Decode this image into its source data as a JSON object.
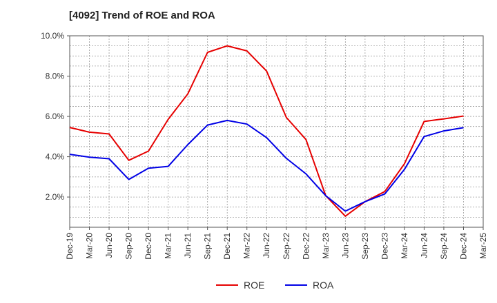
{
  "chart_data": {
    "type": "line",
    "title": "[4092]  Trend of ROE and ROA",
    "x": [
      "Dec-19",
      "Mar-20",
      "Jun-20",
      "Sep-20",
      "Dec-20",
      "Mar-21",
      "Jun-21",
      "Sep-21",
      "Dec-21",
      "Mar-22",
      "Jun-22",
      "Sep-22",
      "Dec-22",
      "Mar-23",
      "Jun-23",
      "Sep-23",
      "Dec-23",
      "Mar-24",
      "Jun-24",
      "Sep-24",
      "Dec-24",
      "Mar-25"
    ],
    "series": [
      {
        "name": "ROE",
        "color": "#e60000",
        "values": [
          5.45,
          5.22,
          5.13,
          3.82,
          4.28,
          5.85,
          7.12,
          9.18,
          9.5,
          9.25,
          8.25,
          5.95,
          4.85,
          2.07,
          1.05,
          1.77,
          2.27,
          3.65,
          5.75,
          5.88,
          6.02,
          null
        ]
      },
      {
        "name": "ROA",
        "color": "#0000e6",
        "values": [
          4.12,
          3.98,
          3.9,
          2.87,
          3.43,
          3.52,
          4.6,
          5.57,
          5.8,
          5.62,
          4.95,
          3.92,
          3.15,
          2.07,
          1.3,
          1.77,
          2.15,
          3.37,
          5.0,
          5.28,
          5.44,
          null
        ]
      }
    ],
    "yticks": [
      "2.0%",
      "4.0%",
      "6.0%",
      "8.0%",
      "10.0%"
    ],
    "ytick_values": [
      2,
      4,
      6,
      8,
      10
    ],
    "ylim": [
      0.5,
      10
    ],
    "grid": true,
    "legend": "bottom-center"
  }
}
